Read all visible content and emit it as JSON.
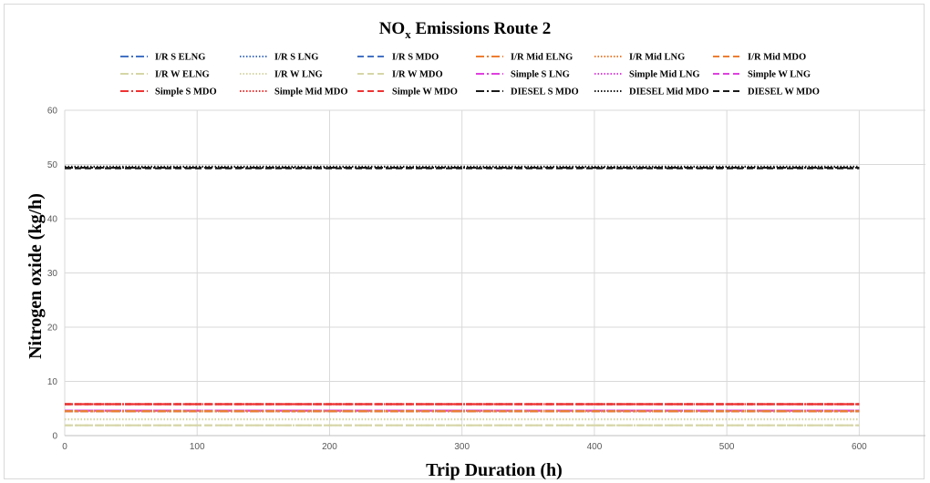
{
  "chart_data": {
    "type": "line",
    "title_main": "NO",
    "title_sub": "x",
    "title_rest": " Emissions Route 2",
    "xlabel": "Trip Duration (h)",
    "ylabel": "Nitrogen oxide (kg/h)",
    "xlim": [
      0,
      650
    ],
    "ylim": [
      0,
      60
    ],
    "x_ticks": [
      0,
      100,
      200,
      300,
      400,
      500,
      600
    ],
    "y_ticks": [
      0,
      10,
      20,
      30,
      40,
      50,
      60
    ],
    "grid": true,
    "legend_position": "top",
    "x": [
      0,
      600
    ],
    "series": [
      {
        "name": "I/R S ELNG",
        "values": [
          4.5,
          4.5
        ],
        "color": "#4472c4",
        "dash": "dashdot"
      },
      {
        "name": "I/R S LNG",
        "values": [
          4.5,
          4.5
        ],
        "color": "#4472c4",
        "dash": "dotted"
      },
      {
        "name": "I/R S MDO",
        "values": [
          5.8,
          5.8
        ],
        "color": "#4472c4",
        "dash": "dashed"
      },
      {
        "name": "I/R Mid ELNG",
        "values": [
          4.5,
          4.5
        ],
        "color": "#ed7d31",
        "dash": "dashdot"
      },
      {
        "name": "I/R Mid LNG",
        "values": [
          4.5,
          4.5
        ],
        "color": "#ed7d31",
        "dash": "dotted"
      },
      {
        "name": "I/R Mid MDO",
        "values": [
          5.8,
          5.8
        ],
        "color": "#ed7d31",
        "dash": "dashed"
      },
      {
        "name": "I/R W ELNG",
        "values": [
          1.9,
          1.9
        ],
        "color": "#d6d6a8",
        "dash": "dashdot"
      },
      {
        "name": "I/R W LNG",
        "values": [
          3.0,
          3.0
        ],
        "color": "#d6d6a8",
        "dash": "dotted"
      },
      {
        "name": "I/R W MDO",
        "values": [
          1.9,
          1.9
        ],
        "color": "#d6d6a8",
        "dash": "dashed"
      },
      {
        "name": "Simple S LNG",
        "values": [
          4.6,
          4.6
        ],
        "color": "#e040e0",
        "dash": "dashdot"
      },
      {
        "name": "Simple Mid LNG",
        "values": [
          4.6,
          4.6
        ],
        "color": "#e040e0",
        "dash": "dotted"
      },
      {
        "name": "Simple W LNG",
        "values": [
          4.6,
          4.6
        ],
        "color": "#e040e0",
        "dash": "dashed"
      },
      {
        "name": "Simple S MDO",
        "values": [
          5.8,
          5.8
        ],
        "color": "#ee3333",
        "dash": "dashdot"
      },
      {
        "name": "Simple Mid MDO",
        "values": [
          5.8,
          5.8
        ],
        "color": "#ee3333",
        "dash": "dotted"
      },
      {
        "name": "Simple W MDO",
        "values": [
          5.8,
          5.8
        ],
        "color": "#ee3333",
        "dash": "dashed"
      },
      {
        "name": "DIESEL S MDO",
        "values": [
          49.4,
          49.4
        ],
        "color": "#1a1a1a",
        "dash": "dashdot"
      },
      {
        "name": "DIESEL Mid MDO",
        "values": [
          49.6,
          49.6
        ],
        "color": "#1a1a1a",
        "dash": "dotted"
      },
      {
        "name": "DIESEL W MDO",
        "values": [
          49.3,
          49.3
        ],
        "color": "#1a1a1a",
        "dash": "dashed"
      }
    ]
  }
}
